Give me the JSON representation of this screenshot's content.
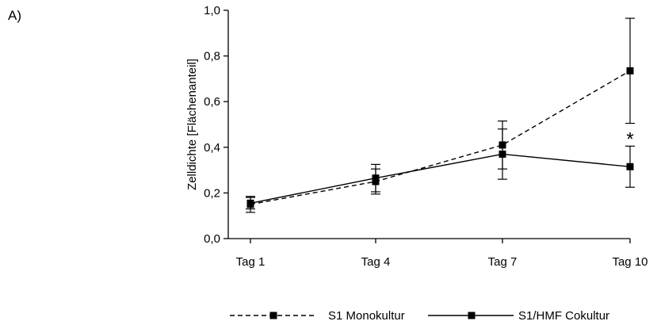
{
  "panel_label": "A)",
  "chart_data": {
    "type": "line",
    "categories": [
      "Tag 1",
      "Tag 4",
      "Tag 7",
      "Tag 10"
    ],
    "ylabel": "Zelldichte [Flächenanteil]",
    "xlabel": "",
    "ylim": [
      0,
      1
    ],
    "yticks": [
      "0,0",
      "0,2",
      "0,4",
      "0,6",
      "0,8",
      "1,0"
    ],
    "grid": false,
    "legend_position": "bottom",
    "series": [
      {
        "name": "S1 Monokultur",
        "line_style": "dashed",
        "marker": "square",
        "color": "#000000",
        "values": [
          0.15,
          0.25,
          0.41,
          0.735
        ],
        "error": [
          0.035,
          0.055,
          0.105,
          0.23
        ]
      },
      {
        "name": "S1/HMF Cokultur",
        "line_style": "solid",
        "marker": "square",
        "color": "#000000",
        "values": [
          0.155,
          0.265,
          0.37,
          0.315
        ],
        "error": [
          0.025,
          0.06,
          0.11,
          0.09
        ]
      }
    ],
    "annotations": [
      {
        "text": "*",
        "category": "Tag 10",
        "y": 0.45
      }
    ]
  }
}
